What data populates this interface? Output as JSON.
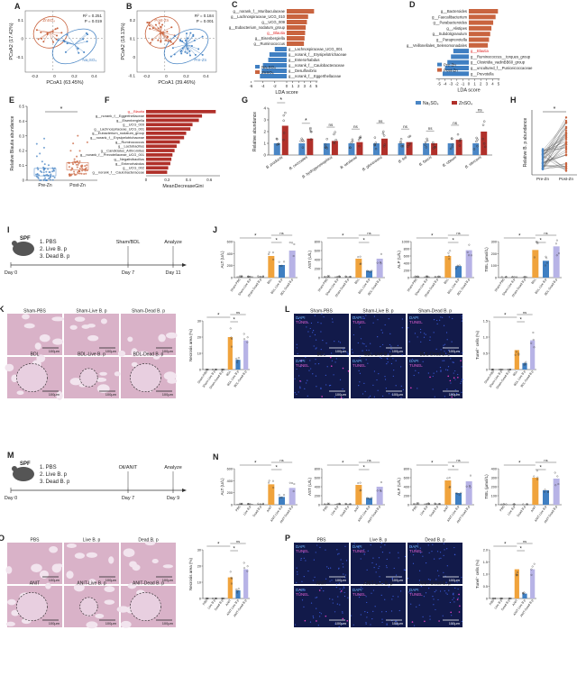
{
  "colors": {
    "pre": "#4a86c5",
    "post": "#c9643f",
    "dark": "#b0302a",
    "orange": "#f0a33c",
    "lav": "#b7b3e6",
    "blue": "#3f7fc2",
    "he_bg": "#d9b2c8",
    "he_tissue": "#c78fb4",
    "fluor_bg": "#121a4a",
    "red_text": "#e02020"
  },
  "panels": {
    "A": {
      "label": "A",
      "xlabel": "PCoA1 (63.45%)",
      "ylabel": "PCoA2 (17.42%)",
      "stats": "R² = 0.251\nP = 0.019",
      "grp1": "ZnSO₄",
      "grp2": "Na₂SO₄",
      "xticks": [
        "-0.2",
        "0",
        "0.2",
        "0.4"
      ],
      "yticks": [
        "0.1",
        "0",
        "-0.1"
      ]
    },
    "B": {
      "label": "B",
      "xlabel": "PCoA1 (39.46%)",
      "ylabel": "PCoA2 (18.13%)",
      "stats": "R² = 0.184\nP = 0.001",
      "grp1": "Post-Zn",
      "grp2": "Pre-Zn",
      "xticks": [
        "-0.2",
        "0",
        "0.2",
        "0.4"
      ],
      "yticks": [
        "0.2",
        "0.1",
        "0",
        "-0.1"
      ]
    },
    "C": {
      "label": "C",
      "xlabel": "LDA score",
      "legend": [
        "Na₂SO₄",
        "ZnSO₄"
      ],
      "xticks": [
        "-6",
        "-4",
        "-2",
        "0",
        "1",
        "2",
        "3",
        "4",
        "5"
      ],
      "taxa": [
        "g__norank_f__Muribaculaceae",
        "g__Lachnospiraceae_UCG_010",
        "g__UCG_009",
        "g__Eubacterium_nodatum_group",
        "g__Blautia",
        "g__Eisenbergiella",
        "g__Ruminococcus",
        "g__Lachnospiraceae_UCG_001",
        "g__norank_f__Erysipelotrichaceae",
        "g__Enterorhabdus",
        "g__norank_f__Caulobacteraceae",
        "g__Desulfovibrio",
        "g__norank_f__Eggerthellaceae"
      ],
      "lda": [
        4.6,
        3.6,
        3.4,
        3.2,
        3.1,
        3.0,
        2.9,
        -2.0,
        -2.9,
        -3.1,
        -4.0,
        -4.2,
        -4.5
      ]
    },
    "D": {
      "label": "D",
      "xlabel": "LDA score",
      "legend": [
        "Pre-Zn",
        "Post-Zn"
      ],
      "xticks": [
        "-5",
        "-4",
        "-3",
        "-2",
        "-1",
        "0",
        "1",
        "2",
        "3",
        "4",
        "5"
      ],
      "taxa": [
        "g__Bacteroides",
        "g__Faecalibacterium",
        "g__Parabacteroides",
        "g__Alistipes",
        "g__Subdoligranulum",
        "g__Paraprevotella",
        "g__Veillonellales_Selenomonadales",
        "g__Blautia",
        "g__Ruminococcus__torques_group",
        "g__Clostridia_vadinBB60_group",
        "g__uncultured_f__Puniceicoccaceae",
        "g__Prevotella"
      ],
      "lda": [
        4.9,
        4.5,
        4.1,
        3.8,
        3.6,
        3.4,
        3.2,
        -2.6,
        -3.0,
        -3.6,
        -4.0,
        -4.4
      ]
    },
    "E": {
      "label": "E",
      "ylabel": "Relative Blautia abundance",
      "groups": [
        "Pre-Zn",
        "Post-Zn"
      ],
      "sig": "*",
      "yticks": [
        "0",
        "0.1",
        "0.2",
        "0.3",
        "0.4",
        "0.5"
      ]
    },
    "F": {
      "label": "F",
      "xlabel": "MeanDecreaseGini",
      "xticks": [
        "0",
        "0.2",
        "0.4",
        "0.6"
      ],
      "taxa": [
        "g__Blautia",
        "g__norank_f__Eggerthellaceae",
        "g__Eisenbergiella",
        "g__UCG_009",
        "g__Lachnospiraceae_UCG_001",
        "g__Eubacterium_nodatum_group",
        "g__norank_f__Erysipelotrichaceae",
        "g__Ruminococcus",
        "g__Lactobacillus",
        "g__Candidatus_Arthromitus",
        "g__norank_f__Prevotellaceae_UCG_001",
        "g__Negativibacillus",
        "g__Enterorhabdus",
        "g__UCG_002",
        "g__norank_f__Caulobacteraceae"
      ],
      "gini": [
        0.66,
        0.53,
        0.5,
        0.44,
        0.42,
        0.38,
        0.36,
        0.32,
        0.29,
        0.27,
        0.25,
        0.24,
        0.23,
        0.21,
        0.2
      ]
    },
    "G": {
      "label": "G",
      "ylabel": "Relative abundance",
      "legend": [
        "Na₂SO₄",
        "ZnSO₄"
      ],
      "yticks": [
        "0",
        "1",
        "2",
        "3",
        "4"
      ],
      "species": [
        "B. producta",
        "B. coccoides",
        "B. hydrogenotrophica",
        "B. wexlerae",
        "B. glucerasea",
        "B. luti",
        "B. faecis",
        "B. obeum",
        "B. stercoris"
      ],
      "sig": [
        "*",
        "*",
        "ns",
        "ns",
        "ns",
        "ns",
        "ns",
        "ns",
        "ns"
      ],
      "na": [
        1.0,
        1.0,
        1.0,
        1.0,
        1.0,
        1.0,
        1.0,
        1.0,
        1.0
      ],
      "zn": [
        2.5,
        1.4,
        1.2,
        1.1,
        1.4,
        1.1,
        1.0,
        1.3,
        2.0
      ]
    },
    "H": {
      "label": "H",
      "ylabel": "Relative B. p abundance",
      "groups": [
        "Pre-Zn",
        "Post-Zn"
      ],
      "sig": "*"
    },
    "I": {
      "label": "I",
      "mouse": "SPF",
      "steps": [
        "1. PBS",
        "2. Live B. p",
        "3. Dead B. p"
      ],
      "event1": "Sham/BDL",
      "event2": "Analyze",
      "t0": "Day 0",
      "t1": "Day 7",
      "t2": "Day 11"
    },
    "M": {
      "label": "M",
      "mouse": "SPF",
      "steps": [
        "1. PBS",
        "2. Live B. p",
        "3. Dead B. p"
      ],
      "event1": "Oil/ANIT",
      "event2": "Analyze",
      "t0": "Day 0",
      "t1": "Day 7",
      "t2": "Day 9"
    },
    "J": {
      "label": "J",
      "groups": [
        "Sham-PBS",
        "Sham-Live B.p",
        "Sham-Dead B.p",
        "BDL",
        "BDL-Live B.p",
        "BDL-Dead B.p"
      ],
      "charts": [
        {
          "name": "ALT",
          "ylabel": "ALT (U/L)",
          "yticks": [
            "0",
            "200",
            "400",
            "600"
          ],
          "ymax": 600,
          "values": [
            20,
            20,
            20,
            360,
            210,
            450
          ]
        },
        {
          "name": "AST",
          "ylabel": "AST (U/L)",
          "yticks": [
            "0",
            "200",
            "400",
            "600",
            "800"
          ],
          "ymax": 800,
          "values": [
            25,
            25,
            25,
            420,
            150,
            420
          ]
        },
        {
          "name": "ALP",
          "ylabel": "ALP (U/L)",
          "yticks": [
            "0",
            "200",
            "400",
            "600",
            "800",
            "1000"
          ],
          "ymax": 1000,
          "values": [
            30,
            30,
            30,
            600,
            320,
            760
          ]
        },
        {
          "name": "TBIL",
          "ylabel": "TBIL (μmol/L)",
          "yticks": [
            "0",
            "100",
            "200",
            "300"
          ],
          "ymax": 300,
          "values": [
            5,
            5,
            5,
            230,
            140,
            260
          ]
        }
      ]
    },
    "N": {
      "label": "N",
      "groups": [
        "PBS",
        "Live B.p",
        "Dead B.p",
        "ANIT",
        "ANIT-Live B.p",
        "ANIT-Dead B.p"
      ],
      "charts": [
        {
          "name": "ALT",
          "ylabel": "ALT (U/L)",
          "yticks": [
            "0",
            "200",
            "400",
            "600"
          ],
          "ymax": 600,
          "values": [
            15,
            15,
            15,
            340,
            130,
            280
          ]
        },
        {
          "name": "AST",
          "ylabel": "AST (U/L)",
          "yticks": [
            "0",
            "200",
            "400",
            "600",
            "800"
          ],
          "ymax": 800,
          "values": [
            20,
            20,
            20,
            440,
            150,
            400
          ]
        },
        {
          "name": "ALP",
          "ylabel": "ALP (U/L)",
          "yticks": [
            "0",
            "200",
            "400",
            "600",
            "800"
          ],
          "ymax": 800,
          "values": [
            25,
            25,
            25,
            540,
            260,
            520
          ]
        },
        {
          "name": "TBIL",
          "ylabel": "TBIL (μmol/L)",
          "yticks": [
            "0",
            "100",
            "200",
            "300",
            "400"
          ],
          "ymax": 400,
          "values": [
            5,
            5,
            5,
            300,
            160,
            290
          ]
        }
      ]
    },
    "K": {
      "label": "K",
      "images": [
        "Sham-PBS",
        "Sham-Live B. p",
        "Sham-Dead B. p",
        "BDL",
        "BDL-Live B. p",
        "BDL-Dead B. p"
      ],
      "scale": "100μm",
      "chart": {
        "ylabel": "Necrosis area (%)",
        "yticks": [
          "0",
          "10",
          "20",
          "30"
        ],
        "ymax": 30,
        "groups": [
          "Sham-PBS",
          "Sham-Live B.p",
          "Sham-Dead B.p",
          "BDL",
          "BDL-Live B.p",
          "BDL-Dead B.p"
        ],
        "values": [
          0,
          0,
          0,
          20,
          6,
          18
        ]
      }
    },
    "L": {
      "label": "L",
      "images": [
        "Sham-PBS",
        "Sham-Live B. p",
        "Sham-Dead B. p",
        "BDL",
        "BDL-Live B. p",
        "BDL-Dead B. p"
      ],
      "scale": "100μm",
      "stain1": "DAPI",
      "stain2": "TUNEL",
      "chart": {
        "ylabel": "Tunel⁺ cells (%)",
        "yticks": [
          "0",
          "0.5",
          "1.0",
          "1.5"
        ],
        "ymax": 1.5,
        "groups": [
          "Sham-PBS",
          "Sham-Live B.p",
          "Sham-Dead B.p",
          "BDL",
          "BDL-Live B.p",
          "BDL-Dead B.p"
        ],
        "values": [
          0,
          0,
          0,
          0.6,
          0.2,
          0.9
        ]
      }
    },
    "O": {
      "label": "O",
      "images": [
        "PBS",
        "Live B. p",
        "Dead B. p",
        "ANIT",
        "ANIT-Live B. p",
        "ANIT-Dead B. p"
      ],
      "scale": "100μm",
      "chart": {
        "ylabel": "Necrosis area (%)",
        "yticks": [
          "0",
          "10",
          "20",
          "30"
        ],
        "ymax": 30,
        "groups": [
          "PBS",
          "Live B.p",
          "Dead B.p",
          "ANIT",
          "ANIT-Live B.p",
          "ANIT-Dead B.p"
        ],
        "values": [
          0,
          0,
          0,
          13,
          5,
          18
        ]
      }
    },
    "P": {
      "label": "P",
      "images": [
        "PBS",
        "Live B. p",
        "Dead B. p",
        "ANIT",
        "ANIT-Live B. p",
        "ANIT-Dead B. p"
      ],
      "scale": "100μm",
      "stain1": "DAPI",
      "stain2": "TUNEL",
      "chart": {
        "ylabel": "Tunel⁺ cells (%)",
        "yticks": [
          "0",
          "0.5",
          "1.0",
          "1.5",
          "2.0"
        ],
        "ymax": 2.0,
        "groups": [
          "PBS",
          "Live B.p",
          "Dead B.p",
          "ANIT",
          "ANIT-Live B.p",
          "ANIT-Dead B.p"
        ],
        "values": [
          0,
          0,
          0,
          1.2,
          0.2,
          1.2
        ]
      }
    }
  },
  "annotations": {
    "sig_star": "*",
    "sig_ns": "ns"
  }
}
